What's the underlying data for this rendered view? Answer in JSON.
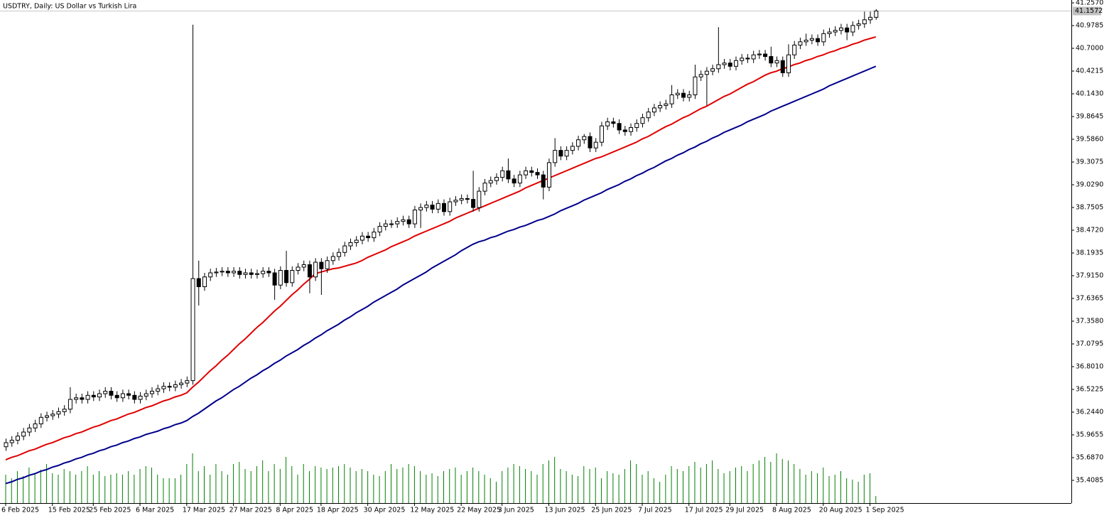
{
  "chart_data": {
    "type": "candlestick",
    "title": "USDTRY, Daily:  US Dollar vs Turkish Lira",
    "up_color": "#ffffff",
    "down_color": "#000000",
    "wick_color": "#000000",
    "ylim": [
      35.13,
      41.292
    ],
    "yticks": [
      {
        "value": 41.257,
        "label": "41.2570"
      },
      {
        "value": 40.9785,
        "label": "40.9785"
      },
      {
        "value": 40.7,
        "label": "40.7000"
      },
      {
        "value": 40.4215,
        "label": "40.4215"
      },
      {
        "value": 40.143,
        "label": "40.1430"
      },
      {
        "value": 39.8645,
        "label": "39.8645"
      },
      {
        "value": 39.586,
        "label": "39.5860"
      },
      {
        "value": 39.3075,
        "label": "39.3075"
      },
      {
        "value": 39.029,
        "label": "39.0290"
      },
      {
        "value": 38.7505,
        "label": "38.7505"
      },
      {
        "value": 38.472,
        "label": "38.4720"
      },
      {
        "value": 38.1935,
        "label": "38.1935"
      },
      {
        "value": 37.915,
        "label": "37.9150"
      },
      {
        "value": 37.6365,
        "label": "37.6365"
      },
      {
        "value": 37.358,
        "label": "37.3580"
      },
      {
        "value": 37.0795,
        "label": "37.0795"
      },
      {
        "value": 36.801,
        "label": "36.8010"
      },
      {
        "value": 36.5225,
        "label": "36.5225"
      },
      {
        "value": 36.244,
        "label": "36.2440"
      },
      {
        "value": 35.9655,
        "label": "35.9655"
      },
      {
        "value": 35.687,
        "label": "35.6870"
      },
      {
        "value": 35.4085,
        "label": "35.4085"
      }
    ],
    "xticks": [
      {
        "value": 0,
        "label": "6 Feb 2025"
      },
      {
        "value": 8,
        "label": "15 Feb 2025"
      },
      {
        "value": 15,
        "label": "25 Feb 2025"
      },
      {
        "value": 23,
        "label": "6 Mar 2025"
      },
      {
        "value": 31,
        "label": "17 Mar 2025"
      },
      {
        "value": 39,
        "label": "27 Mar 2025"
      },
      {
        "value": 47,
        "label": "8 Apr 2025"
      },
      {
        "value": 54,
        "label": "18 Apr 2025"
      },
      {
        "value": 62,
        "label": "30 Apr 2025"
      },
      {
        "value": 70,
        "label": "12 May 2025"
      },
      {
        "value": 78,
        "label": "22 May 2025"
      },
      {
        "value": 85,
        "label": "3 Jun 2025"
      },
      {
        "value": 93,
        "label": "13 Jun 2025"
      },
      {
        "value": 101,
        "label": "25 Jun 2025"
      },
      {
        "value": 109,
        "label": "7 Jul 2025"
      },
      {
        "value": 117,
        "label": "17 Jul 2025"
      },
      {
        "value": 124,
        "label": "29 Jul 2025"
      },
      {
        "value": 132,
        "label": "8 Aug 2025"
      },
      {
        "value": 140,
        "label": "20 Aug 2025"
      },
      {
        "value": 148,
        "label": "1 Sep 2025"
      }
    ],
    "last_price": 41.1572,
    "open": [
      35.82,
      35.87,
      35.9,
      35.95,
      36.0,
      36.05,
      36.1,
      36.18,
      36.2,
      36.22,
      36.25,
      36.28,
      36.4,
      36.42,
      36.4,
      36.45,
      36.43,
      36.47,
      36.5,
      36.45,
      36.42,
      36.47,
      36.45,
      36.4,
      36.44,
      36.47,
      36.5,
      36.53,
      36.56,
      36.55,
      36.58,
      36.6,
      36.63,
      37.88,
      37.78,
      37.9,
      37.95,
      37.96,
      37.97,
      37.95,
      37.97,
      37.93,
      37.95,
      37.93,
      37.94,
      37.97,
      37.95,
      37.8,
      37.98,
      37.83,
      37.98,
      38.02,
      38.05,
      37.9,
      38.08,
      38.0,
      38.1,
      38.15,
      38.2,
      38.28,
      38.32,
      38.35,
      38.4,
      38.38,
      38.45,
      38.52,
      38.55,
      38.55,
      38.58,
      38.6,
      38.55,
      38.72,
      38.75,
      38.78,
      38.73,
      38.8,
      38.7,
      38.82,
      38.84,
      38.86,
      38.85,
      38.75,
      38.95,
      39.05,
      39.08,
      39.12,
      39.2,
      39.1,
      39.05,
      39.15,
      39.2,
      39.18,
      39.15,
      39.0,
      39.3,
      39.45,
      39.38,
      39.45,
      39.5,
      39.58,
      39.62,
      39.48,
      39.55,
      39.75,
      39.8,
      39.78,
      39.7,
      39.68,
      39.73,
      39.78,
      39.85,
      39.92,
      39.97,
      40.0,
      40.02,
      40.13,
      40.15,
      40.1,
      40.13,
      40.35,
      40.38,
      40.42,
      40.45,
      40.5,
      40.52,
      40.48,
      40.55,
      40.58,
      40.57,
      40.62,
      40.63,
      40.6,
      40.52,
      40.55,
      40.4,
      40.62,
      40.74,
      40.78,
      40.8,
      40.82,
      40.78,
      40.88,
      40.9,
      40.92,
      40.95,
      40.9,
      40.98,
      41.0,
      41.05,
      41.08
    ],
    "high": [
      35.92,
      35.95,
      36.0,
      36.05,
      36.1,
      36.15,
      36.23,
      36.25,
      36.27,
      36.3,
      36.33,
      36.55,
      36.47,
      36.47,
      36.5,
      36.5,
      36.52,
      36.55,
      36.55,
      36.5,
      36.52,
      36.52,
      36.5,
      36.49,
      36.52,
      36.55,
      36.58,
      36.61,
      36.61,
      36.63,
      36.65,
      36.68,
      40.99,
      38.1,
      37.95,
      38.0,
      38.01,
      38.02,
      38.02,
      38.02,
      38.02,
      38.0,
      38.0,
      37.99,
      38.02,
      38.02,
      38.0,
      38.03,
      38.22,
      38.03,
      38.07,
      38.1,
      38.1,
      38.13,
      38.13,
      38.15,
      38.2,
      38.25,
      38.33,
      38.37,
      38.4,
      38.45,
      38.45,
      38.5,
      38.57,
      38.6,
      38.6,
      38.63,
      38.65,
      38.65,
      38.77,
      38.8,
      38.83,
      38.83,
      38.85,
      38.85,
      38.87,
      38.89,
      38.91,
      38.91,
      39.2,
      39.0,
      39.1,
      39.13,
      39.17,
      39.25,
      39.35,
      39.15,
      39.2,
      39.25,
      39.25,
      39.23,
      39.2,
      39.35,
      39.6,
      39.5,
      39.5,
      39.55,
      39.63,
      39.65,
      39.67,
      39.6,
      39.8,
      39.85,
      39.85,
      39.83,
      39.75,
      39.78,
      39.83,
      39.9,
      39.97,
      40.02,
      40.05,
      40.07,
      40.25,
      40.2,
      40.2,
      40.18,
      40.5,
      40.43,
      40.47,
      40.5,
      40.96,
      40.57,
      40.57,
      40.6,
      40.63,
      40.63,
      40.67,
      40.68,
      40.68,
      40.72,
      40.6,
      40.6,
      40.75,
      40.79,
      40.83,
      40.88,
      40.87,
      40.87,
      40.93,
      40.95,
      40.97,
      41.0,
      41.0,
      41.03,
      41.05,
      41.15,
      41.15,
      41.18
    ],
    "low": [
      35.77,
      35.82,
      35.85,
      35.9,
      35.95,
      36.0,
      36.05,
      36.13,
      36.15,
      36.17,
      36.2,
      36.23,
      36.35,
      36.35,
      36.35,
      36.38,
      36.38,
      36.42,
      36.4,
      36.37,
      36.37,
      36.4,
      36.35,
      36.35,
      36.39,
      36.42,
      36.45,
      36.48,
      36.5,
      36.5,
      36.53,
      36.55,
      36.58,
      37.55,
      37.73,
      37.85,
      37.9,
      37.91,
      37.9,
      37.9,
      37.88,
      37.88,
      37.88,
      37.88,
      37.89,
      37.9,
      37.62,
      37.75,
      37.78,
      37.78,
      37.93,
      37.97,
      37.7,
      37.85,
      37.68,
      37.95,
      38.05,
      38.1,
      38.15,
      38.23,
      38.27,
      38.3,
      38.33,
      38.33,
      38.4,
      38.47,
      38.5,
      38.5,
      38.53,
      38.5,
      38.5,
      38.5,
      38.7,
      38.68,
      38.68,
      38.65,
      38.65,
      38.77,
      38.79,
      38.8,
      38.7,
      38.7,
      38.9,
      39.0,
      39.03,
      39.07,
      39.05,
      39.0,
      39.0,
      39.1,
      39.13,
      39.1,
      38.85,
      38.95,
      39.25,
      39.33,
      39.33,
      39.4,
      39.45,
      39.53,
      39.43,
      39.43,
      39.5,
      39.7,
      39.73,
      39.65,
      39.63,
      39.63,
      39.68,
      39.73,
      39.8,
      39.87,
      39.92,
      39.95,
      39.97,
      40.08,
      40.05,
      40.05,
      40.08,
      40.3,
      40.0,
      40.37,
      40.4,
      40.45,
      40.43,
      40.43,
      40.5,
      40.52,
      40.52,
      40.57,
      40.55,
      40.47,
      40.47,
      40.35,
      40.35,
      40.57,
      40.69,
      40.73,
      40.75,
      40.73,
      40.73,
      40.83,
      40.85,
      40.87,
      40.8,
      40.85,
      40.93,
      40.95,
      41.0,
      41.05
    ],
    "close": [
      35.87,
      35.9,
      35.95,
      36.0,
      36.05,
      36.1,
      36.18,
      36.2,
      36.22,
      36.25,
      36.28,
      36.4,
      36.42,
      36.4,
      36.45,
      36.43,
      36.47,
      36.5,
      36.45,
      36.42,
      36.47,
      36.45,
      36.4,
      36.44,
      36.47,
      36.5,
      36.53,
      36.56,
      36.55,
      36.58,
      36.6,
      36.63,
      37.88,
      37.78,
      37.9,
      37.95,
      37.96,
      37.97,
      37.95,
      37.97,
      37.93,
      37.95,
      37.93,
      37.94,
      37.97,
      37.95,
      37.8,
      37.98,
      37.83,
      37.98,
      38.02,
      38.05,
      37.9,
      38.08,
      38.0,
      38.1,
      38.15,
      38.2,
      38.28,
      38.32,
      38.35,
      38.4,
      38.38,
      38.45,
      38.52,
      38.55,
      38.55,
      38.58,
      38.6,
      38.55,
      38.72,
      38.75,
      38.78,
      38.73,
      38.8,
      38.7,
      38.82,
      38.84,
      38.86,
      38.85,
      38.75,
      38.95,
      39.05,
      39.08,
      39.12,
      39.2,
      39.1,
      39.05,
      39.15,
      39.2,
      39.18,
      39.15,
      39.0,
      39.3,
      39.45,
      39.38,
      39.45,
      39.5,
      39.58,
      39.62,
      39.48,
      39.55,
      39.75,
      39.8,
      39.78,
      39.7,
      39.68,
      39.73,
      39.78,
      39.85,
      39.92,
      39.97,
      40.0,
      40.02,
      40.13,
      40.15,
      40.1,
      40.13,
      40.35,
      40.38,
      40.42,
      40.45,
      40.5,
      40.52,
      40.48,
      40.55,
      40.58,
      40.57,
      40.62,
      40.63,
      40.6,
      40.52,
      40.55,
      40.4,
      40.62,
      40.74,
      40.78,
      40.8,
      40.82,
      40.78,
      40.88,
      40.9,
      40.92,
      40.95,
      40.9,
      40.98,
      41.0,
      41.05,
      41.08,
      41.1572
    ],
    "series": [
      {
        "color": "#e00000",
        "values": [
          35.66,
          35.69,
          35.71,
          35.74,
          35.77,
          35.79,
          35.82,
          35.85,
          35.87,
          35.9,
          35.93,
          35.95,
          35.98,
          36.0,
          36.03,
          36.06,
          36.08,
          36.11,
          36.14,
          36.16,
          36.19,
          36.22,
          36.24,
          36.27,
          36.3,
          36.32,
          36.35,
          36.38,
          36.4,
          36.43,
          36.45,
          36.48,
          36.55,
          36.61,
          36.68,
          36.75,
          36.81,
          36.88,
          36.94,
          37.01,
          37.08,
          37.14,
          37.21,
          37.28,
          37.34,
          37.41,
          37.48,
          37.54,
          37.61,
          37.68,
          37.74,
          37.81,
          37.87,
          37.94,
          37.96,
          37.98,
          38.0,
          38.01,
          38.03,
          38.05,
          38.07,
          38.1,
          38.14,
          38.17,
          38.2,
          38.23,
          38.27,
          38.3,
          38.33,
          38.36,
          38.4,
          38.43,
          38.46,
          38.49,
          38.52,
          38.55,
          38.58,
          38.62,
          38.65,
          38.68,
          38.71,
          38.74,
          38.77,
          38.8,
          38.83,
          38.86,
          38.89,
          38.92,
          38.95,
          38.99,
          39.02,
          39.05,
          39.08,
          39.11,
          39.14,
          39.17,
          39.2,
          39.23,
          39.26,
          39.29,
          39.32,
          39.35,
          39.37,
          39.4,
          39.43,
          39.46,
          39.49,
          39.52,
          39.55,
          39.59,
          39.62,
          39.66,
          39.7,
          39.74,
          39.77,
          39.81,
          39.85,
          39.88,
          39.92,
          39.96,
          39.99,
          40.03,
          40.07,
          40.11,
          40.14,
          40.18,
          40.22,
          40.26,
          40.29,
          40.33,
          40.37,
          40.4,
          40.42,
          40.45,
          40.47,
          40.5,
          40.52,
          40.55,
          40.57,
          40.6,
          40.62,
          40.65,
          40.67,
          40.7,
          40.72,
          40.75,
          40.77,
          40.8,
          40.82,
          40.84
        ]
      },
      {
        "color": "#00008b",
        "values": [
          35.37,
          35.39,
          35.42,
          35.44,
          35.47,
          35.49,
          35.52,
          35.54,
          35.57,
          35.59,
          35.62,
          35.64,
          35.67,
          35.69,
          35.72,
          35.74,
          35.77,
          35.79,
          35.82,
          35.84,
          35.87,
          35.89,
          35.92,
          35.94,
          35.97,
          35.99,
          36.01,
          36.04,
          36.06,
          36.09,
          36.11,
          36.14,
          36.19,
          36.23,
          36.28,
          36.33,
          36.38,
          36.42,
          36.47,
          36.52,
          36.56,
          36.61,
          36.66,
          36.7,
          36.75,
          36.79,
          36.84,
          36.88,
          36.93,
          36.97,
          37.01,
          37.06,
          37.1,
          37.15,
          37.19,
          37.24,
          37.28,
          37.32,
          37.37,
          37.41,
          37.46,
          37.5,
          37.54,
          37.59,
          37.63,
          37.67,
          37.71,
          37.75,
          37.8,
          37.84,
          37.88,
          37.92,
          37.96,
          38.01,
          38.05,
          38.09,
          38.13,
          38.17,
          38.22,
          38.26,
          38.3,
          38.33,
          38.35,
          38.38,
          38.4,
          38.43,
          38.46,
          38.48,
          38.51,
          38.53,
          38.56,
          38.59,
          38.61,
          38.64,
          38.67,
          38.71,
          38.74,
          38.77,
          38.8,
          38.84,
          38.87,
          38.9,
          38.93,
          38.97,
          39.0,
          39.03,
          39.07,
          39.1,
          39.14,
          39.17,
          39.21,
          39.24,
          39.28,
          39.32,
          39.35,
          39.39,
          39.42,
          39.46,
          39.49,
          39.53,
          39.56,
          39.6,
          39.63,
          39.67,
          39.7,
          39.73,
          39.76,
          39.8,
          39.83,
          39.86,
          39.89,
          39.93,
          39.96,
          39.99,
          40.02,
          40.05,
          40.08,
          40.11,
          40.14,
          40.17,
          40.2,
          40.24,
          40.27,
          40.3,
          40.33,
          40.36,
          40.39,
          40.42,
          40.45,
          40.48
        ]
      }
    ],
    "volume": {
      "color": "#008000",
      "values": [
        40,
        35,
        45,
        38,
        50,
        42,
        47,
        55,
        42,
        40,
        48,
        45,
        40,
        45,
        52,
        40,
        45,
        38,
        40,
        42,
        40,
        45,
        40,
        48,
        52,
        50,
        40,
        35,
        35,
        35,
        40,
        55,
        70,
        45,
        52,
        40,
        55,
        45,
        40,
        55,
        58,
        48,
        45,
        52,
        60,
        45,
        55,
        48,
        65,
        52,
        40,
        55,
        45,
        52,
        50,
        48,
        50,
        52,
        55,
        50,
        45,
        48,
        45,
        40,
        38,
        45,
        55,
        48,
        50,
        55,
        52,
        45,
        40,
        42,
        38,
        45,
        48,
        50,
        40,
        45,
        50,
        45,
        40,
        35,
        30,
        45,
        50,
        55,
        52,
        48,
        45,
        40,
        55,
        60,
        65,
        48,
        45,
        40,
        38,
        52,
        48,
        50,
        35,
        45,
        42,
        40,
        48,
        60,
        55,
        40,
        45,
        35,
        30,
        40,
        52,
        48,
        45,
        52,
        58,
        50,
        55,
        60,
        48,
        42,
        45,
        50,
        52,
        45,
        55,
        60,
        65,
        58,
        70,
        62,
        60,
        55,
        48,
        40,
        45,
        42,
        50,
        38,
        40,
        45,
        35,
        33,
        30,
        40,
        42,
        10
      ]
    }
  }
}
